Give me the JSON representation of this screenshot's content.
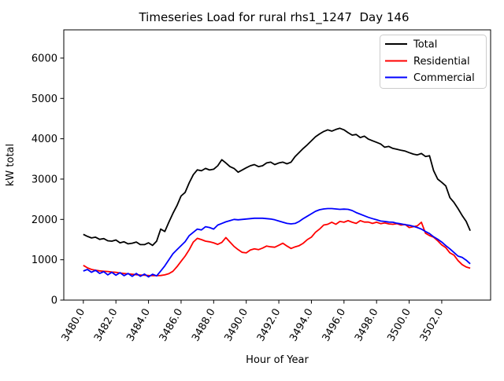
{
  "chart_data": {
    "type": "line",
    "title": "Timeseries Load for rural rhs1_1247  Day 146",
    "xlabel": "Hour of Year",
    "ylabel": "kW total",
    "xlim": [
      3478.8,
      3505.0
    ],
    "ylim": [
      0,
      6700
    ],
    "grid": false,
    "legend_position": "upper right",
    "xtick_labels": [
      "3480.0",
      "3482.0",
      "3484.0",
      "3486.0",
      "3488.0",
      "3490.0",
      "3492.0",
      "3494.0",
      "3496.0",
      "3498.0",
      "3500.0",
      "3502.0"
    ],
    "ytick_labels": [
      "0",
      "1000",
      "2000",
      "3000",
      "4000",
      "5000",
      "6000"
    ],
    "x": [
      3480.0,
      3480.25,
      3480.5,
      3480.75,
      3481.0,
      3481.25,
      3481.5,
      3481.75,
      3482.0,
      3482.25,
      3482.5,
      3482.75,
      3483.0,
      3483.25,
      3483.5,
      3483.75,
      3484.0,
      3484.25,
      3484.5,
      3484.75,
      3485.0,
      3485.25,
      3485.5,
      3485.75,
      3486.0,
      3486.25,
      3486.5,
      3486.75,
      3487.0,
      3487.25,
      3487.5,
      3487.75,
      3488.0,
      3488.25,
      3488.5,
      3488.75,
      3489.0,
      3489.25,
      3489.5,
      3489.75,
      3490.0,
      3490.25,
      3490.5,
      3490.75,
      3491.0,
      3491.25,
      3491.5,
      3491.75,
      3492.0,
      3492.25,
      3492.5,
      3492.75,
      3493.0,
      3493.25,
      3493.5,
      3493.75,
      3494.0,
      3494.25,
      3494.5,
      3494.75,
      3495.0,
      3495.25,
      3495.5,
      3495.75,
      3496.0,
      3496.25,
      3496.5,
      3496.75,
      3497.0,
      3497.25,
      3497.5,
      3497.75,
      3498.0,
      3498.25,
      3498.5,
      3498.75,
      3499.0,
      3499.25,
      3499.5,
      3499.75,
      3500.0,
      3500.25,
      3500.5,
      3500.75,
      3501.0,
      3501.25,
      3501.5,
      3501.75,
      3502.0,
      3502.25,
      3502.5,
      3502.75,
      3503.0,
      3503.25,
      3503.5,
      3503.75
    ],
    "series": [
      {
        "name": "Total",
        "color": "#000000",
        "values": [
          1630,
          1580,
          1540,
          1560,
          1505,
          1525,
          1470,
          1460,
          1490,
          1420,
          1445,
          1395,
          1410,
          1440,
          1375,
          1375,
          1420,
          1355,
          1460,
          1760,
          1700,
          1930,
          2150,
          2345,
          2580,
          2670,
          2910,
          3110,
          3230,
          3205,
          3265,
          3225,
          3245,
          3330,
          3480,
          3400,
          3310,
          3265,
          3170,
          3225,
          3280,
          3330,
          3360,
          3310,
          3330,
          3400,
          3420,
          3360,
          3400,
          3420,
          3380,
          3420,
          3560,
          3660,
          3760,
          3850,
          3950,
          4050,
          4120,
          4180,
          4220,
          4190,
          4230,
          4260,
          4220,
          4150,
          4090,
          4105,
          4030,
          4065,
          3990,
          3950,
          3910,
          3870,
          3790,
          3810,
          3760,
          3740,
          3715,
          3695,
          3655,
          3620,
          3600,
          3635,
          3560,
          3580,
          3210,
          3000,
          2920,
          2830,
          2540,
          2420,
          2270,
          2100,
          1950,
          1720
        ]
      },
      {
        "name": "Residential",
        "color": "#ff0000",
        "values": [
          860,
          800,
          760,
          740,
          725,
          715,
          708,
          695,
          690,
          672,
          660,
          650,
          640,
          630,
          622,
          615,
          610,
          607,
          606,
          610,
          625,
          655,
          715,
          830,
          960,
          1090,
          1250,
          1440,
          1530,
          1500,
          1460,
          1445,
          1420,
          1380,
          1430,
          1550,
          1440,
          1330,
          1250,
          1185,
          1170,
          1240,
          1270,
          1250,
          1290,
          1340,
          1320,
          1310,
          1360,
          1410,
          1340,
          1280,
          1320,
          1350,
          1410,
          1500,
          1560,
          1680,
          1760,
          1860,
          1880,
          1930,
          1880,
          1950,
          1930,
          1970,
          1930,
          1900,
          1970,
          1935,
          1935,
          1900,
          1930,
          1895,
          1915,
          1890,
          1880,
          1895,
          1860,
          1875,
          1800,
          1820,
          1840,
          1930,
          1660,
          1600,
          1560,
          1470,
          1370,
          1300,
          1170,
          1115,
          980,
          880,
          820,
          790
        ]
      },
      {
        "name": "Commercial",
        "color": "#0000ff",
        "values": [
          720,
          760,
          690,
          740,
          660,
          705,
          625,
          690,
          615,
          680,
          605,
          660,
          590,
          660,
          590,
          645,
          575,
          640,
          600,
          720,
          850,
          1000,
          1150,
          1250,
          1350,
          1450,
          1600,
          1680,
          1760,
          1740,
          1820,
          1800,
          1760,
          1860,
          1900,
          1940,
          1970,
          2000,
          1990,
          2000,
          2010,
          2020,
          2030,
          2030,
          2030,
          2020,
          2010,
          1990,
          1960,
          1930,
          1900,
          1890,
          1900,
          1950,
          2020,
          2080,
          2140,
          2200,
          2240,
          2260,
          2270,
          2270,
          2260,
          2250,
          2255,
          2250,
          2220,
          2170,
          2130,
          2090,
          2050,
          2020,
          1990,
          1960,
          1950,
          1935,
          1930,
          1905,
          1890,
          1870,
          1855,
          1830,
          1800,
          1760,
          1700,
          1650,
          1570,
          1510,
          1440,
          1350,
          1270,
          1180,
          1090,
          1060,
          990,
          900
        ]
      }
    ]
  }
}
